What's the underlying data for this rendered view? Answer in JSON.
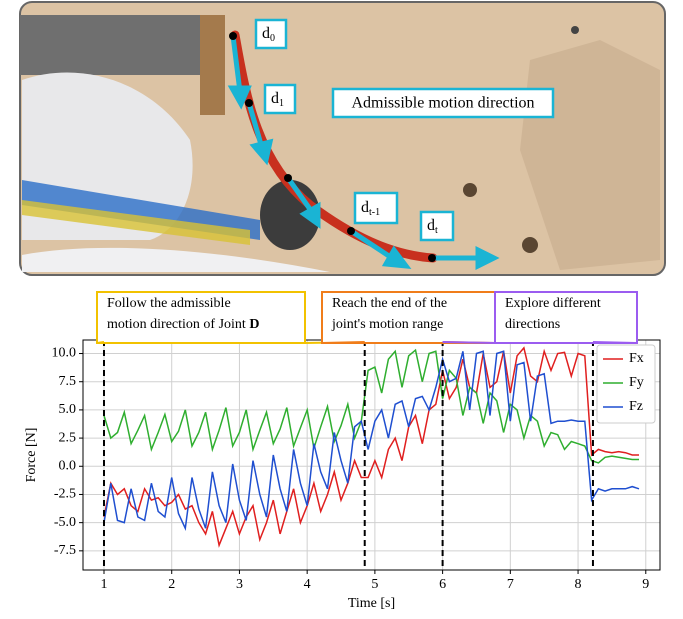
{
  "photo": {
    "labels": [
      {
        "base": "d",
        "sub": "0"
      },
      {
        "base": "d",
        "sub": "1"
      },
      {
        "base": "d",
        "sub": "t-1"
      },
      {
        "base": "d",
        "sub": "t"
      }
    ],
    "caption": "Admissible motion direction"
  },
  "chart_data": {
    "type": "line",
    "x_label": "Time [s]",
    "y_label": "Force [N]",
    "xlim": [
      0.69,
      9.21
    ],
    "ylim": [
      -9.2,
      11.2
    ],
    "xticks": [
      1,
      2,
      3,
      4,
      5,
      6,
      7,
      8,
      9
    ],
    "yticks": [
      {
        "value": 10,
        "label": "10.0"
      },
      7.5,
      {
        "value": 5,
        "label": "5.0"
      },
      2.5,
      {
        "value": 0,
        "label": "0.0"
      },
      -2.5,
      {
        "value": -5,
        "label": "-5.0"
      },
      -7.5
    ],
    "grid": true,
    "legend": "upper right",
    "vlines": [
      1,
      4.85,
      6.0,
      8.22
    ],
    "annotations": [
      {
        "lines": [
          "Follow the admissible",
          "motion direction of Joint "
        ],
        "emphasis": "D",
        "color": "#f2c200"
      },
      {
        "lines": [
          "Reach the end of the",
          "joint's motion range"
        ],
        "color": "#f07d1a"
      },
      {
        "lines": [
          "Explore different",
          "directions"
        ],
        "color": "#9b5cf0"
      }
    ],
    "x": [
      1.0,
      1.1,
      1.2,
      1.3,
      1.4,
      1.5,
      1.6,
      1.7,
      1.8,
      1.9,
      2.0,
      2.1,
      2.2,
      2.3,
      2.4,
      2.5,
      2.6,
      2.7,
      2.8,
      2.9,
      3.0,
      3.1,
      3.2,
      3.3,
      3.4,
      3.5,
      3.6,
      3.7,
      3.8,
      3.9,
      4.0,
      4.1,
      4.2,
      4.3,
      4.4,
      4.5,
      4.6,
      4.7,
      4.8,
      4.9,
      5.0,
      5.1,
      5.2,
      5.3,
      5.4,
      5.5,
      5.6,
      5.7,
      5.8,
      5.9,
      6.0,
      6.1,
      6.2,
      6.3,
      6.4,
      6.5,
      6.6,
      6.7,
      6.8,
      6.9,
      7.0,
      7.1,
      7.2,
      7.3,
      7.4,
      7.5,
      7.6,
      7.7,
      7.8,
      7.9,
      8.0,
      8.1,
      8.2,
      8.3,
      8.4,
      8.5,
      8.6,
      8.7,
      8.8,
      8.9
    ],
    "series": [
      {
        "name": "Fx",
        "color": "#e01f1f",
        "values": [
          -4.5,
          -1.5,
          -2.5,
          -2.0,
          -3.5,
          -4.0,
          -2.0,
          -3.0,
          -2.8,
          -3.5,
          -3.2,
          -2.5,
          -3.8,
          -3.5,
          -5.0,
          -6.0,
          -4.0,
          -7.0,
          -5.5,
          -4.0,
          -6.0,
          -4.5,
          -3.5,
          -6.5,
          -5.0,
          -3.0,
          -6.0,
          -4.0,
          -2.0,
          -5.0,
          -3.5,
          -1.5,
          -4.0,
          -2.5,
          -0.5,
          -3.0,
          -1.5,
          0.5,
          -1.0,
          -1.0,
          0.5,
          -1.0,
          1.5,
          2.5,
          0.5,
          3.5,
          4.5,
          2.0,
          5.0,
          5.5,
          8.5,
          6.0,
          7.0,
          9.5,
          7.0,
          6.5,
          10.0,
          7.0,
          7.5,
          10.2,
          6.5,
          9.8,
          10.5,
          8.0,
          7.5,
          10.2,
          8.5,
          10.0,
          10.1,
          8.0,
          10.0,
          9.8,
          1.0,
          1.5,
          1.3,
          1.2,
          1.3,
          1.2,
          1.0,
          1.0
        ]
      },
      {
        "name": "Fy",
        "color": "#2fae2f",
        "values": [
          4.5,
          2.5,
          3.0,
          4.8,
          2.0,
          3.2,
          4.5,
          1.5,
          3.0,
          4.6,
          2.2,
          3.1,
          5.0,
          1.8,
          3.0,
          4.8,
          1.5,
          3.2,
          5.2,
          1.8,
          3.0,
          5.0,
          1.5,
          3.2,
          4.8,
          2.0,
          3.3,
          5.2,
          1.8,
          3.4,
          5.0,
          1.6,
          3.5,
          5.3,
          2.2,
          3.6,
          5.5,
          2.5,
          4.0,
          8.5,
          8.8,
          6.5,
          9.5,
          10.2,
          7.0,
          9.8,
          10.3,
          7.5,
          10.0,
          10.2,
          6.0,
          8.5,
          7.8,
          4.5,
          7.0,
          6.5,
          3.8,
          6.5,
          5.8,
          3.0,
          5.5,
          5.0,
          2.5,
          4.5,
          4.0,
          1.8,
          3.0,
          2.8,
          1.5,
          2.2,
          2.0,
          1.8,
          0.5,
          0.3,
          0.8,
          0.9,
          0.8,
          0.7,
          0.6,
          0.6
        ]
      },
      {
        "name": "Fz",
        "color": "#1f4fd0",
        "values": [
          -5.0,
          -1.5,
          -4.8,
          -5.0,
          -2.0,
          -4.5,
          -4.8,
          -1.5,
          -4.0,
          -4.5,
          -1.0,
          -4.2,
          -5.5,
          -1.0,
          -3.8,
          -5.5,
          -0.5,
          -3.5,
          -5.0,
          0.2,
          -3.0,
          -4.8,
          0.5,
          -2.5,
          -4.5,
          1.0,
          -2.0,
          -4.0,
          1.5,
          -1.5,
          -3.5,
          2.0,
          -0.5,
          -2.0,
          3.0,
          0.5,
          -1.5,
          3.5,
          4.0,
          1.5,
          4.0,
          5.0,
          2.5,
          5.5,
          5.8,
          3.5,
          6.0,
          6.2,
          5.0,
          7.0,
          9.5,
          7.5,
          7.8,
          10.2,
          5.0,
          10.0,
          10.2,
          4.5,
          10.0,
          10.2,
          4.0,
          9.0,
          9.2,
          4.0,
          8.0,
          8.2,
          3.8,
          4.0,
          4.0,
          4.1,
          4.0,
          4.0,
          -3.0,
          -2.0,
          -2.2,
          -2.0,
          -2.0,
          -2.0,
          -1.8,
          -2.0
        ]
      }
    ]
  }
}
